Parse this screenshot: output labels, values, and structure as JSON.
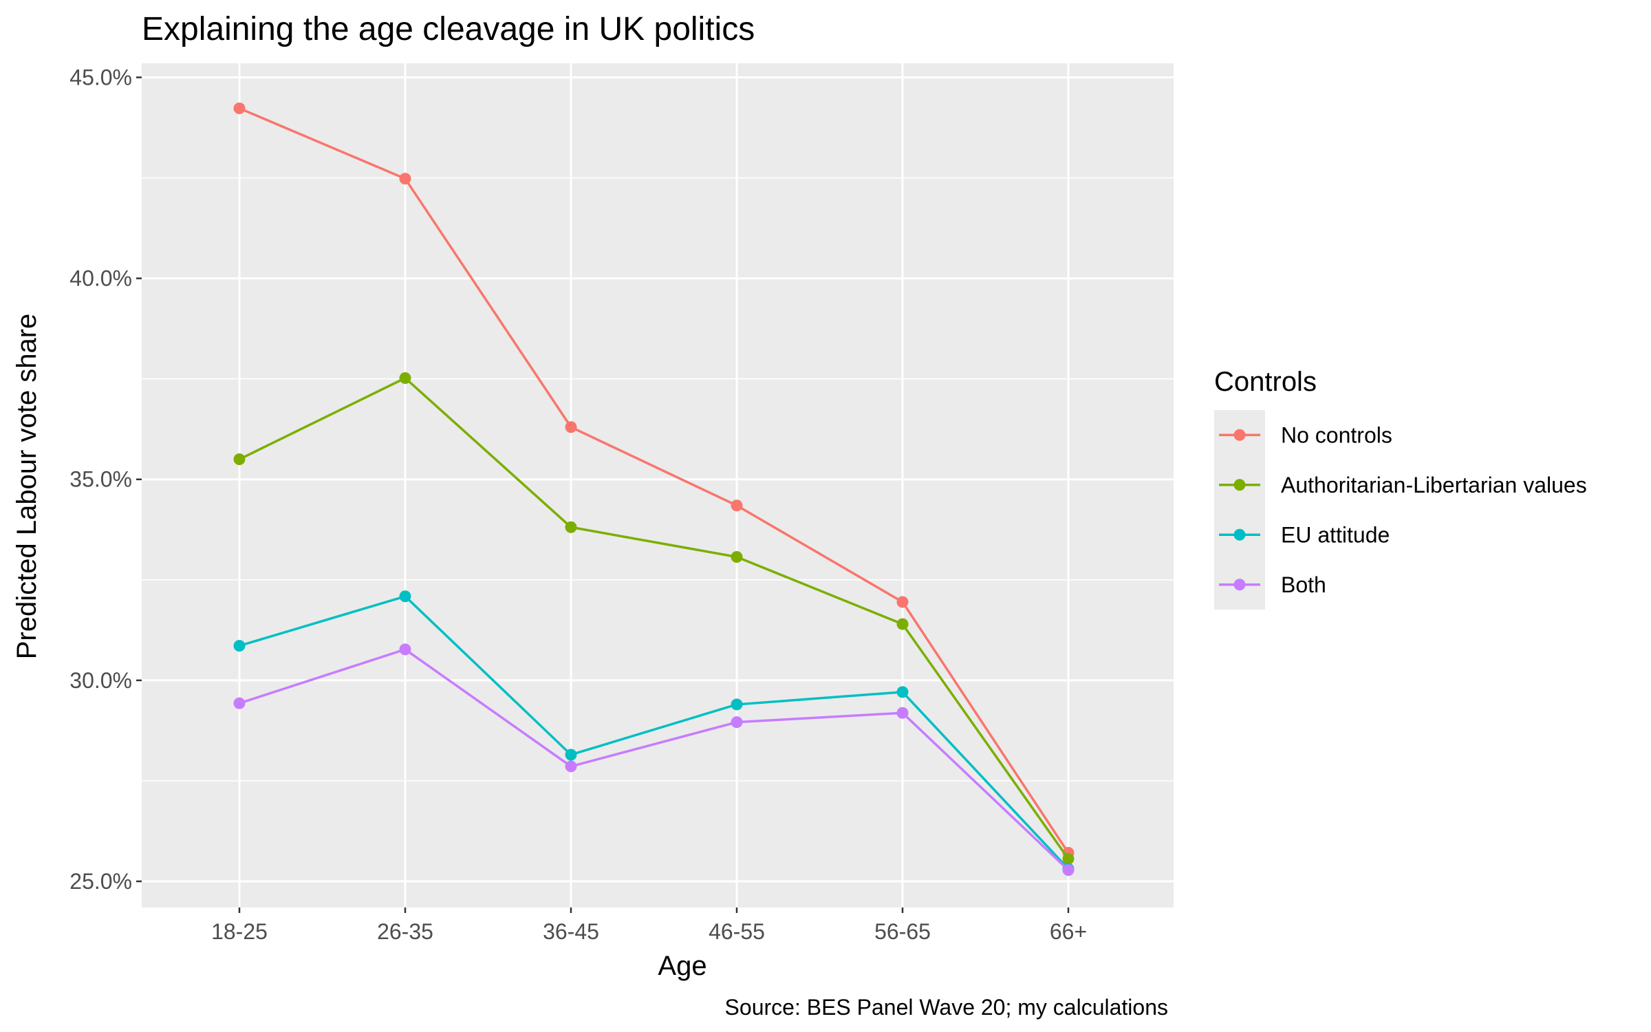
{
  "chart_data": {
    "type": "line",
    "title": "Explaining the age cleavage in UK politics",
    "xlabel": "Age",
    "ylabel": "Predicted Labour vote share",
    "caption": "Source: BES Panel Wave 20; my calculations",
    "categories": [
      "18-25",
      "26-35",
      "36-45",
      "46-55",
      "56-65",
      "66+"
    ],
    "yticks": [
      0.25,
      0.3,
      0.35,
      0.4,
      0.45
    ],
    "ytick_labels": [
      "25.0%",
      "30.0%",
      "35.0%",
      "40.0%",
      "45.0%"
    ],
    "ylim": [
      0.2435,
      0.4535
    ],
    "grid": true,
    "legend": {
      "title": "Controls",
      "position": "right"
    },
    "series": [
      {
        "name": "No controls",
        "color": "#F8766D",
        "values": [
          0.4423,
          0.4248,
          0.363,
          0.3435,
          0.3195,
          0.2571
        ]
      },
      {
        "name": "Authoritarian-Libertarian values",
        "color": "#7CAE00",
        "values": [
          0.355,
          0.3752,
          0.3381,
          0.3307,
          0.314,
          0.2556
        ]
      },
      {
        "name": "EU attitude",
        "color": "#00BFC4",
        "values": [
          0.3086,
          0.3209,
          0.2815,
          0.294,
          0.2971,
          0.2531
        ]
      },
      {
        "name": "Both",
        "color": "#C77CFF",
        "values": [
          0.2943,
          0.3077,
          0.2786,
          0.2896,
          0.2919,
          0.2528
        ]
      }
    ]
  }
}
